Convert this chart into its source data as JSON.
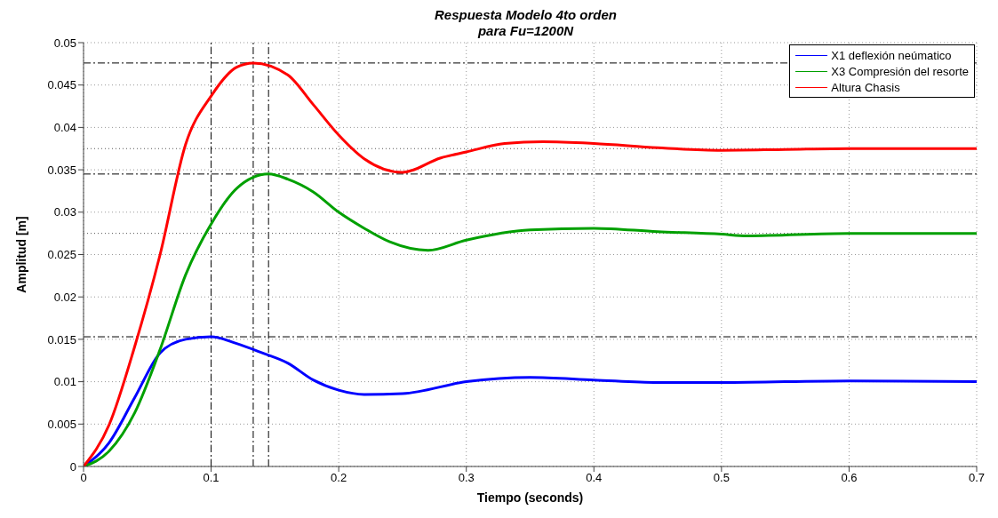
{
  "chart_data": {
    "type": "line",
    "title": "Respuesta Modelo 4to orden\npara Fu=1200N",
    "xlabel": "Tiempo (seconds)",
    "ylabel": "Amplitud [m]",
    "xlim": [
      0,
      0.7
    ],
    "xticks": [
      0,
      0.1,
      0.2,
      0.3,
      0.4,
      0.5,
      0.6,
      0.7
    ],
    "ylim": [
      0,
      0.05
    ],
    "yticks": [
      0,
      0.005,
      0.01,
      0.015,
      0.02,
      0.025,
      0.03,
      0.035,
      0.04,
      0.045,
      0.05
    ],
    "grid": true,
    "legend": "top right",
    "line_style": "solid",
    "series": [
      {
        "name": "X1 deflexión neúmatico",
        "color": "#0000ff",
        "x": [
          0,
          0.02,
          0.04,
          0.06,
          0.08,
          0.1,
          0.12,
          0.14,
          0.16,
          0.18,
          0.2,
          0.22,
          0.25,
          0.3,
          0.35,
          0.4,
          0.45,
          0.5,
          0.6,
          0.7
        ],
        "values": [
          0,
          0.0028,
          0.0081,
          0.0134,
          0.015,
          0.0153,
          0.0145,
          0.0134,
          0.0122,
          0.0102,
          0.009,
          0.0085,
          0.0086,
          0.01,
          0.0105,
          0.0102,
          0.0099,
          0.0099,
          0.0101,
          0.01
        ]
      },
      {
        "name": "X3 Compresión del resorte",
        "color": "#00a000",
        "x": [
          0,
          0.02,
          0.04,
          0.06,
          0.08,
          0.1,
          0.12,
          0.145,
          0.16,
          0.18,
          0.2,
          0.22,
          0.24,
          0.27,
          0.3,
          0.35,
          0.4,
          0.45,
          0.5,
          0.52,
          0.6,
          0.7
        ],
        "values": [
          0,
          0.0018,
          0.0063,
          0.0138,
          0.0226,
          0.0286,
          0.0328,
          0.0345,
          0.0339,
          0.0324,
          0.03,
          0.0281,
          0.0265,
          0.0255,
          0.0267,
          0.0279,
          0.0281,
          0.0277,
          0.0274,
          0.0272,
          0.0275,
          0.0275
        ]
      },
      {
        "name": "Altura Chasis",
        "color": "#ff0000",
        "x": [
          0,
          0.02,
          0.04,
          0.06,
          0.08,
          0.1,
          0.12,
          0.133,
          0.16,
          0.18,
          0.2,
          0.22,
          0.25,
          0.28,
          0.3,
          0.33,
          0.36,
          0.4,
          0.45,
          0.5,
          0.55,
          0.6,
          0.7
        ],
        "values": [
          0,
          0.0049,
          0.0141,
          0.025,
          0.038,
          0.0437,
          0.0471,
          0.0476,
          0.0462,
          0.0427,
          0.0391,
          0.0363,
          0.0347,
          0.0364,
          0.0371,
          0.0381,
          0.0383,
          0.0381,
          0.0376,
          0.0373,
          0.0374,
          0.0375,
          0.0375
        ]
      }
    ],
    "ref_lines": [
      {
        "axis": "y",
        "value": 0.0476,
        "color": "#000000",
        "line_style": "dashed"
      },
      {
        "axis": "y",
        "value": 0.0345,
        "color": "#000000",
        "line_style": "dashed"
      },
      {
        "axis": "y",
        "value": 0.0153,
        "color": "#000000",
        "line_style": "dashed"
      },
      {
        "axis": "x",
        "value": 0.1,
        "color": "#000000",
        "line_style": "dashed"
      },
      {
        "axis": "x",
        "value": 0.133,
        "color": "#000000",
        "line_style": "dashed"
      },
      {
        "axis": "x",
        "value": 0.145,
        "color": "#000000",
        "line_style": "dashed"
      },
      {
        "axis": "y",
        "value": 0.0375,
        "color": "#555555",
        "line_style": "dotted"
      },
      {
        "axis": "y",
        "value": 0.0275,
        "color": "#555555",
        "line_style": "dotted"
      }
    ]
  }
}
